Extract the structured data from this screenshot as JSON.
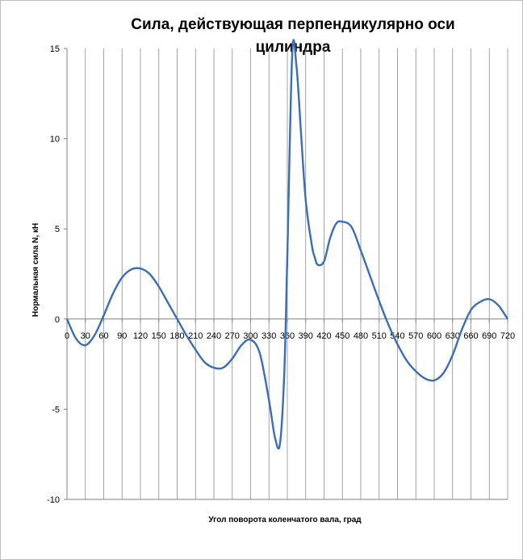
{
  "chart_data": {
    "type": "line",
    "title_lines": [
      "Сила, действующая перпендикулярно оси",
      "цилиндра"
    ],
    "xlabel": "Угол поворота коленчатого вала, град",
    "ylabel": "Нормальная сила N, кН",
    "x_ticks": [
      0,
      30,
      60,
      90,
      120,
      150,
      180,
      210,
      240,
      270,
      300,
      330,
      360,
      390,
      420,
      450,
      480,
      510,
      540,
      570,
      600,
      630,
      660,
      690,
      720
    ],
    "x_tick_labels": [
      "0",
      "30",
      "60",
      "90",
      "120",
      "150",
      "180",
      "210",
      "240",
      "270",
      "300",
      "330",
      "360",
      "390",
      "420",
      "450",
      "480",
      "510",
      "540",
      "570",
      "600",
      "630",
      "660",
      "690",
      "720"
    ],
    "xlim": [
      0,
      720
    ],
    "y_ticks": [
      15,
      10,
      5,
      0,
      -5,
      -10
    ],
    "y_tick_labels": [
      "15",
      "10",
      "5",
      "0",
      "-5",
      "-10"
    ],
    "ylim": [
      -10,
      15
    ],
    "grid": "vertical",
    "legend": "none",
    "series": [
      {
        "color": "#3a6eb5",
        "x": [
          0,
          15,
          30,
          45,
          60,
          75,
          90,
          105,
          120,
          135,
          150,
          165,
          180,
          195,
          210,
          225,
          240,
          255,
          270,
          285,
          300,
          315,
          330,
          340,
          348,
          355,
          360,
          368,
          375,
          382,
          390,
          400,
          405,
          410,
          420,
          430,
          440,
          450,
          465,
          480,
          495,
          510,
          525,
          540,
          555,
          570,
          585,
          600,
          615,
          630,
          645,
          660,
          675,
          690,
          705,
          720
        ],
        "y": [
          0,
          -1.1,
          -1.45,
          -0.9,
          0.2,
          1.4,
          2.3,
          2.75,
          2.8,
          2.5,
          1.8,
          0.9,
          0,
          -0.9,
          -1.7,
          -2.4,
          -2.7,
          -2.7,
          -2.2,
          -1.45,
          -1.15,
          -1.9,
          -4.5,
          -6.6,
          -6.9,
          -3.0,
          3.5,
          14.7,
          14.0,
          10.5,
          6.6,
          4.1,
          3.4,
          3.0,
          3.2,
          4.5,
          5.3,
          5.4,
          5.1,
          3.8,
          2.4,
          1.0,
          -0.3,
          -1.4,
          -2.3,
          -2.9,
          -3.3,
          -3.4,
          -3.0,
          -2.0,
          -0.6,
          0.5,
          0.95,
          1.1,
          0.75,
          0
        ]
      }
    ]
  }
}
